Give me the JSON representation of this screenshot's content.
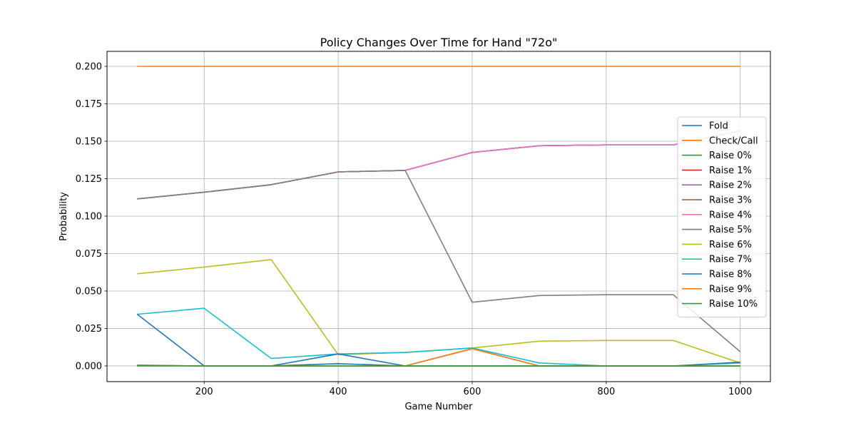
{
  "chart_data": {
    "type": "line",
    "title": "Policy Changes Over Time for Hand \"72o\"",
    "xlabel": "Game Number",
    "ylabel": "Probability",
    "xlim": [
      55,
      1045
    ],
    "ylim": [
      -0.0105,
      0.21
    ],
    "xticks": [
      200,
      400,
      600,
      800,
      1000
    ],
    "xtick_labels": [
      "200",
      "400",
      "600",
      "800",
      "1000"
    ],
    "yticks": [
      0.0,
      0.025,
      0.05,
      0.075,
      0.1,
      0.125,
      0.15,
      0.175,
      0.2
    ],
    "ytick_labels": [
      "0.000",
      "0.025",
      "0.050",
      "0.075",
      "0.100",
      "0.125",
      "0.150",
      "0.175",
      "0.200"
    ],
    "grid": true,
    "legend_position": "center-right",
    "x": [
      100,
      200,
      300,
      400,
      500,
      600,
      700,
      800,
      900,
      1000
    ],
    "series": [
      {
        "name": "Fold",
        "color": "#1f77b4",
        "values": [
          0.0005,
          0.0,
          0.0,
          0.0015,
          0.0,
          0.0,
          0.0,
          0.0,
          0.0,
          0.0
        ]
      },
      {
        "name": "Check/Call",
        "color": "#ff7f0e",
        "values": [
          0.2,
          0.2,
          0.2,
          0.2,
          0.2,
          0.2,
          0.2,
          0.2,
          0.2,
          0.2
        ]
      },
      {
        "name": "Raise 0%",
        "color": "#2ca02c",
        "values": [
          0.0003,
          0.0,
          0.0,
          0.0,
          0.0,
          0.0,
          0.0,
          0.0,
          0.0,
          0.0
        ]
      },
      {
        "name": "Raise 1%",
        "color": "#d62728",
        "values": [
          0.1115,
          0.116,
          0.121,
          0.1295,
          0.1305,
          0.1425,
          0.147,
          0.1475,
          0.1475,
          0.157
        ]
      },
      {
        "name": "Raise 2%",
        "color": "#9467bd",
        "values": [
          0.1115,
          0.116,
          0.121,
          0.1295,
          0.1305,
          0.1425,
          0.147,
          0.1475,
          0.1475,
          0.157
        ]
      },
      {
        "name": "Raise 3%",
        "color": "#8c564b",
        "values": [
          0.1115,
          0.116,
          0.121,
          0.1295,
          0.1305,
          0.1425,
          0.147,
          0.1475,
          0.1475,
          0.157
        ]
      },
      {
        "name": "Raise 4%",
        "color": "#e377c2",
        "values": [
          0.1115,
          0.116,
          0.121,
          0.1295,
          0.1305,
          0.1425,
          0.147,
          0.1475,
          0.1475,
          0.157
        ]
      },
      {
        "name": "Raise 5%",
        "color": "#7f7f7f",
        "values": [
          0.1115,
          0.116,
          0.121,
          0.1295,
          0.1305,
          0.0425,
          0.047,
          0.0475,
          0.0475,
          0.0095
        ]
      },
      {
        "name": "Raise 6%",
        "color": "#bcbd22",
        "values": [
          0.0615,
          0.066,
          0.071,
          0.0075,
          0.009,
          0.012,
          0.0165,
          0.017,
          0.017,
          0.002
        ]
      },
      {
        "name": "Raise 7%",
        "color": "#17becf",
        "values": [
          0.0345,
          0.0385,
          0.005,
          0.008,
          0.009,
          0.012,
          0.002,
          0.0,
          0.0,
          0.002
        ]
      },
      {
        "name": "Raise 8%",
        "color": "#1f77b4",
        "values": [
          0.0345,
          0.0,
          0.0,
          0.008,
          0.0,
          0.0115,
          0.0,
          0.0,
          0.0,
          0.0025
        ]
      },
      {
        "name": "Raise 9%",
        "color": "#ff7f0e",
        "values": [
          0.0,
          0.0,
          0.0,
          0.0,
          0.0,
          0.0115,
          0.0,
          0.0,
          0.0,
          0.0
        ]
      },
      {
        "name": "Raise 10%",
        "color": "#2ca02c",
        "values": [
          0.0,
          0.0,
          0.0,
          0.0,
          0.0,
          0.0,
          0.0,
          0.0,
          0.0,
          0.0
        ]
      }
    ]
  }
}
